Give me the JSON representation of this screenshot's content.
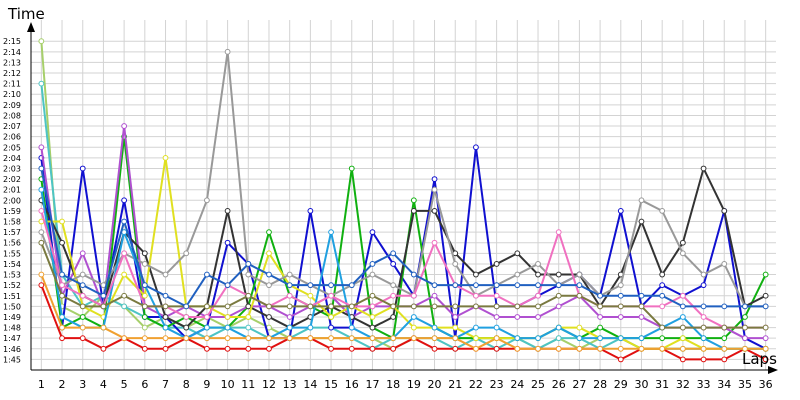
{
  "chart_data": {
    "type": "line",
    "ylabel": "Time",
    "xlabel": "Laps",
    "x_ticks": [
      "1",
      "2",
      "3",
      "4",
      "5",
      "6",
      "7",
      "8",
      "9",
      "10",
      "11",
      "12",
      "13",
      "14",
      "15",
      "16",
      "17",
      "18",
      "19",
      "20",
      "21",
      "22",
      "23",
      "24",
      "25",
      "26",
      "27",
      "28",
      "29",
      "30",
      "31",
      "32",
      "33",
      "34",
      "35",
      "36"
    ],
    "y_ticks": [
      "1:45",
      "1:46",
      "1:47",
      "1:48",
      "1:49",
      "1:50",
      "1:51",
      "1:52",
      "1:53",
      "1:54",
      "1:55",
      "1:56",
      "1:57",
      "1:58",
      "1:59",
      "2:00",
      "2:01",
      "2:02",
      "2:03",
      "2:04",
      "2:05",
      "2:06",
      "2:07",
      "2:08",
      "2:09",
      "2:10",
      "2:11",
      "2:12",
      "2:13",
      "2:14",
      "2:15"
    ],
    "ylim_seconds": [
      104,
      137
    ],
    "xlim": [
      0.5,
      36.5
    ],
    "grid": true,
    "legend": "none",
    "series": [
      {
        "color": "#a6cf6a",
        "values": [
          135,
          110,
          109,
          111,
          110,
          108,
          109,
          108,
          109,
          108,
          109,
          108,
          107,
          107,
          107,
          107,
          107,
          106,
          107,
          107,
          107,
          107,
          107,
          107,
          106,
          107,
          106,
          107,
          107,
          106,
          106,
          106,
          106,
          106,
          106,
          106
        ]
      },
      {
        "color": "#4dc4c4",
        "values": [
          131,
          113,
          110,
          111,
          110,
          109,
          108,
          108,
          107,
          108,
          108,
          107,
          107,
          108,
          108,
          107,
          106,
          107,
          107,
          107,
          106,
          107,
          106,
          107,
          106,
          107,
          107,
          106,
          107,
          106,
          106,
          106,
          106,
          106,
          106,
          106
        ]
      },
      {
        "color": "#e01010",
        "values": [
          112,
          107,
          107,
          106,
          107,
          106,
          106,
          107,
          106,
          106,
          106,
          106,
          107,
          107,
          106,
          106,
          106,
          106,
          107,
          106,
          106,
          106,
          106,
          106,
          106,
          106,
          106,
          106,
          105,
          106,
          106,
          105,
          105,
          105,
          106,
          105
        ]
      },
      {
        "color": "#1010d0",
        "values": [
          124,
          108,
          123,
          110,
          120,
          109,
          109,
          107,
          108,
          116,
          114,
          107,
          107,
          119,
          108,
          108,
          117,
          114,
          111,
          122,
          107,
          125,
          110,
          110,
          111,
          112,
          113,
          111,
          119,
          110,
          112,
          111,
          112,
          119,
          107,
          106
        ]
      },
      {
        "color": "#10b010",
        "values": [
          122,
          108,
          109,
          108,
          126,
          109,
          108,
          109,
          108,
          108,
          110,
          117,
          111,
          110,
          109,
          123,
          108,
          107,
          120,
          108,
          107,
          107,
          107,
          107,
          107,
          108,
          107,
          108,
          107,
          107,
          107,
          107,
          107,
          107,
          109,
          113
        ]
      },
      {
        "color": "#b050d0",
        "values": [
          125,
          111,
          115,
          110,
          127,
          110,
          109,
          110,
          109,
          109,
          110,
          110,
          109,
          110,
          111,
          109,
          110,
          110,
          110,
          111,
          109,
          110,
          109,
          109,
          109,
          110,
          111,
          109,
          109,
          109,
          108,
          108,
          108,
          108,
          107,
          107
        ]
      },
      {
        "color": "#333333",
        "values": [
          120,
          116,
          111,
          110,
          117,
          115,
          109,
          108,
          110,
          119,
          110,
          109,
          108,
          109,
          110,
          109,
          108,
          109,
          119,
          119,
          115,
          113,
          114,
          115,
          113,
          113,
          113,
          110,
          113,
          118,
          113,
          116,
          123,
          119,
          110,
          111
        ]
      },
      {
        "color": "#e0e020",
        "values": [
          118,
          118,
          110,
          109,
          113,
          111,
          124,
          110,
          110,
          109,
          109,
          115,
          112,
          111,
          109,
          110,
          109,
          110,
          108,
          108,
          108,
          107,
          107,
          107,
          107,
          108,
          108,
          107,
          107,
          106,
          106,
          107,
          106,
          106,
          106,
          106
        ]
      },
      {
        "color": "#999999",
        "values": [
          117,
          112,
          113,
          112,
          115,
          114,
          113,
          115,
          120,
          134,
          113,
          112,
          113,
          112,
          111,
          112,
          113,
          112,
          111,
          121,
          114,
          111,
          112,
          113,
          114,
          112,
          113,
          111,
          112,
          120,
          119,
          115,
          113,
          114,
          110,
          110
        ]
      },
      {
        "color": "#20a0e0",
        "values": [
          121,
          109,
          108,
          108,
          117,
          112,
          108,
          107,
          108,
          108,
          107,
          107,
          108,
          108,
          117,
          108,
          107,
          107,
          109,
          108,
          107,
          108,
          108,
          107,
          107,
          108,
          107,
          107,
          107,
          107,
          108,
          109,
          107,
          106,
          106,
          106
        ]
      },
      {
        "color": "#f070c0",
        "values": [
          119,
          112,
          111,
          110,
          115,
          110,
          110,
          109,
          109,
          112,
          111,
          110,
          111,
          110,
          111,
          110,
          110,
          111,
          111,
          116,
          112,
          111,
          111,
          110,
          111,
          117,
          111,
          110,
          110,
          110,
          110,
          111,
          109,
          108,
          108,
          108
        ]
      },
      {
        "color": "#f0a030",
        "values": [
          113,
          108,
          108,
          108,
          107,
          107,
          107,
          107,
          107,
          107,
          107,
          107,
          107,
          107,
          107,
          107,
          107,
          107,
          107,
          107,
          107,
          106,
          107,
          106,
          106,
          106,
          106,
          106,
          106,
          106,
          106,
          106,
          106,
          106,
          106,
          106
        ]
      },
      {
        "color": "#7a7a40",
        "values": [
          116,
          111,
          110,
          110,
          111,
          110,
          110,
          110,
          110,
          110,
          111,
          110,
          110,
          110,
          110,
          110,
          111,
          110,
          110,
          110,
          110,
          110,
          110,
          110,
          110,
          111,
          111,
          110,
          110,
          110,
          108,
          108,
          108,
          108,
          108,
          108
        ]
      },
      {
        "color": "#2060c0",
        "values": [
          123,
          113,
          112,
          111,
          118,
          112,
          111,
          110,
          113,
          112,
          114,
          113,
          112,
          112,
          112,
          112,
          114,
          115,
          113,
          112,
          112,
          112,
          112,
          112,
          112,
          112,
          112,
          111,
          111,
          111,
          111,
          110,
          110,
          110,
          110,
          110
        ]
      }
    ]
  }
}
